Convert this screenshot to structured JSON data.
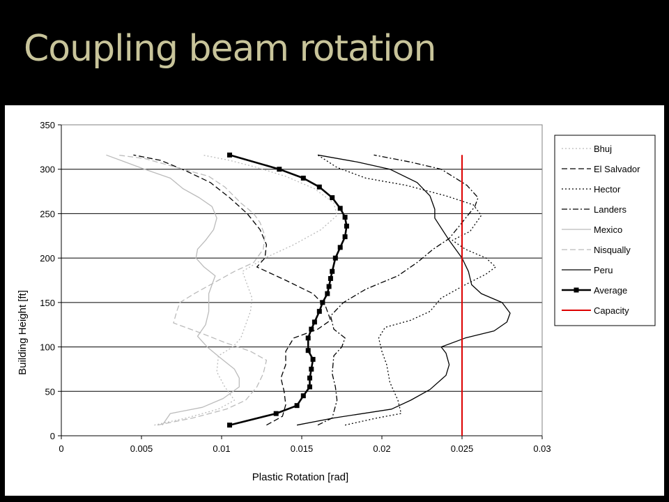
{
  "slide": {
    "title": "Coupling beam rotation"
  },
  "chart_data": {
    "type": "line",
    "title": "",
    "xlabel": "Plastic Rotation [rad]",
    "ylabel": "Building Height [ft]",
    "xlim": [
      0,
      0.03
    ],
    "ylim": [
      0,
      350
    ],
    "xticks": [
      "0",
      "0.005",
      "0.01",
      "0.015",
      "0.02",
      "0.025",
      "0.03"
    ],
    "yticks": [
      "0",
      "50",
      "100",
      "150",
      "200",
      "250",
      "300",
      "350"
    ],
    "grid": "horizontal",
    "legend_position": "right",
    "series": [
      {
        "name": "Bhuj",
        "color": "#bbbbbb",
        "style": "dotted",
        "points": [
          [
            0.0058,
            12
          ],
          [
            0.0078,
            20
          ],
          [
            0.0098,
            30
          ],
          [
            0.0108,
            40
          ],
          [
            0.0102,
            55
          ],
          [
            0.0097,
            72
          ],
          [
            0.0098,
            90
          ],
          [
            0.0107,
            100
          ],
          [
            0.0112,
            110
          ],
          [
            0.0115,
            125
          ],
          [
            0.0118,
            140
          ],
          [
            0.0119,
            155
          ],
          [
            0.0116,
            170
          ],
          [
            0.0113,
            185
          ],
          [
            0.0127,
            200
          ],
          [
            0.0145,
            215
          ],
          [
            0.0162,
            232
          ],
          [
            0.0172,
            248
          ],
          [
            0.017,
            262
          ],
          [
            0.0158,
            278
          ],
          [
            0.014,
            292
          ],
          [
            0.0122,
            302
          ],
          [
            0.0105,
            310
          ],
          [
            0.0088,
            316
          ]
        ]
      },
      {
        "name": "El Salvador",
        "color": "#000000",
        "style": "dashed",
        "points": [
          [
            0.0128,
            12
          ],
          [
            0.0138,
            22
          ],
          [
            0.014,
            35
          ],
          [
            0.0139,
            50
          ],
          [
            0.0137,
            65
          ],
          [
            0.014,
            80
          ],
          [
            0.014,
            95
          ],
          [
            0.0145,
            110
          ],
          [
            0.016,
            120
          ],
          [
            0.0168,
            130
          ],
          [
            0.0165,
            145
          ],
          [
            0.0157,
            160
          ],
          [
            0.014,
            175
          ],
          [
            0.0122,
            190
          ],
          [
            0.0127,
            200
          ],
          [
            0.0128,
            215
          ],
          [
            0.0124,
            232
          ],
          [
            0.0116,
            250
          ],
          [
            0.0105,
            268
          ],
          [
            0.0093,
            285
          ],
          [
            0.0078,
            298
          ],
          [
            0.0062,
            310
          ],
          [
            0.0045,
            316
          ]
        ]
      },
      {
        "name": "Hector",
        "color": "#000000",
        "style": "dotted",
        "points": [
          [
            0.0177,
            12
          ],
          [
            0.0197,
            20
          ],
          [
            0.0212,
            25
          ],
          [
            0.021,
            40
          ],
          [
            0.0205,
            60
          ],
          [
            0.0203,
            80
          ],
          [
            0.02,
            95
          ],
          [
            0.0198,
            110
          ],
          [
            0.0202,
            122
          ],
          [
            0.0218,
            130
          ],
          [
            0.023,
            140
          ],
          [
            0.0237,
            155
          ],
          [
            0.0252,
            170
          ],
          [
            0.0265,
            182
          ],
          [
            0.0271,
            190
          ],
          [
            0.0265,
            200
          ],
          [
            0.0252,
            210
          ],
          [
            0.0244,
            220
          ],
          [
            0.0255,
            230
          ],
          [
            0.0262,
            248
          ],
          [
            0.0257,
            260
          ],
          [
            0.024,
            270
          ],
          [
            0.0215,
            282
          ],
          [
            0.019,
            290
          ],
          [
            0.0172,
            302
          ],
          [
            0.016,
            316
          ]
        ]
      },
      {
        "name": "Landers",
        "color": "#000000",
        "style": "dashdot",
        "points": [
          [
            0.016,
            12
          ],
          [
            0.0169,
            20
          ],
          [
            0.0172,
            40
          ],
          [
            0.0171,
            55
          ],
          [
            0.0169,
            70
          ],
          [
            0.017,
            90
          ],
          [
            0.0175,
            100
          ],
          [
            0.0177,
            110
          ],
          [
            0.017,
            120
          ],
          [
            0.0168,
            135
          ],
          [
            0.0176,
            150
          ],
          [
            0.019,
            165
          ],
          [
            0.021,
            180
          ],
          [
            0.0222,
            195
          ],
          [
            0.0232,
            210
          ],
          [
            0.0242,
            222
          ],
          [
            0.025,
            240
          ],
          [
            0.0258,
            258
          ],
          [
            0.026,
            268
          ],
          [
            0.0253,
            282
          ],
          [
            0.0237,
            300
          ],
          [
            0.0218,
            308
          ],
          [
            0.0195,
            316
          ]
        ]
      },
      {
        "name": "Mexico",
        "color": "#bbbbbb",
        "style": "solid",
        "points": [
          [
            0.0063,
            12
          ],
          [
            0.0068,
            25
          ],
          [
            0.0088,
            32
          ],
          [
            0.0101,
            42
          ],
          [
            0.0111,
            55
          ],
          [
            0.0111,
            65
          ],
          [
            0.0108,
            75
          ],
          [
            0.0099,
            88
          ],
          [
            0.0091,
            100
          ],
          [
            0.0085,
            112
          ],
          [
            0.009,
            125
          ],
          [
            0.0092,
            140
          ],
          [
            0.0092,
            160
          ],
          [
            0.0096,
            180
          ],
          [
            0.0089,
            190
          ],
          [
            0.0084,
            200
          ],
          [
            0.0085,
            210
          ],
          [
            0.009,
            220
          ],
          [
            0.0095,
            232
          ],
          [
            0.0097,
            245
          ],
          [
            0.0094,
            258
          ],
          [
            0.0086,
            268
          ],
          [
            0.0076,
            278
          ],
          [
            0.0068,
            290
          ],
          [
            0.0052,
            300
          ],
          [
            0.004,
            308
          ],
          [
            0.0028,
            316
          ]
        ]
      },
      {
        "name": "Nisqually",
        "color": "#bbbbbb",
        "style": "dashed",
        "points": [
          [
            0.006,
            12
          ],
          [
            0.0082,
            20
          ],
          [
            0.0103,
            30
          ],
          [
            0.0115,
            40
          ],
          [
            0.0122,
            55
          ],
          [
            0.0126,
            70
          ],
          [
            0.0128,
            85
          ],
          [
            0.0118,
            95
          ],
          [
            0.0102,
            105
          ],
          [
            0.0088,
            115
          ],
          [
            0.007,
            127
          ],
          [
            0.0072,
            140
          ],
          [
            0.0074,
            150
          ],
          [
            0.0083,
            160
          ],
          [
            0.0098,
            175
          ],
          [
            0.0108,
            185
          ],
          [
            0.012,
            195
          ],
          [
            0.0126,
            210
          ],
          [
            0.0127,
            225
          ],
          [
            0.0124,
            240
          ],
          [
            0.012,
            250
          ],
          [
            0.0112,
            262
          ],
          [
            0.0102,
            280
          ],
          [
            0.0092,
            292
          ],
          [
            0.0072,
            302
          ],
          [
            0.0052,
            312
          ],
          [
            0.0035,
            316
          ]
        ]
      },
      {
        "name": "Peru",
        "color": "#000000",
        "style": "solid",
        "points": [
          [
            0.0147,
            12
          ],
          [
            0.017,
            20
          ],
          [
            0.0206,
            30
          ],
          [
            0.0218,
            40
          ],
          [
            0.023,
            52
          ],
          [
            0.024,
            68
          ],
          [
            0.0242,
            80
          ],
          [
            0.024,
            93
          ],
          [
            0.0237,
            100
          ],
          [
            0.0252,
            110
          ],
          [
            0.027,
            118
          ],
          [
            0.0278,
            128
          ],
          [
            0.028,
            138
          ],
          [
            0.0275,
            150
          ],
          [
            0.0262,
            160
          ],
          [
            0.0256,
            170
          ],
          [
            0.0254,
            185
          ],
          [
            0.025,
            200
          ],
          [
            0.0242,
            220
          ],
          [
            0.0233,
            245
          ],
          [
            0.0233,
            255
          ],
          [
            0.023,
            270
          ],
          [
            0.0222,
            285
          ],
          [
            0.0205,
            300
          ],
          [
            0.0185,
            308
          ],
          [
            0.016,
            316
          ]
        ]
      },
      {
        "name": "Average",
        "color": "#000000",
        "style": "bold-marker",
        "points": [
          [
            0.0105,
            12
          ],
          [
            0.0134,
            25
          ],
          [
            0.0147,
            34
          ],
          [
            0.0151,
            45
          ],
          [
            0.0155,
            55
          ],
          [
            0.0155,
            65
          ],
          [
            0.0156,
            75
          ],
          [
            0.0157,
            86
          ],
          [
            0.0154,
            96
          ],
          [
            0.0154,
            110
          ],
          [
            0.0156,
            120
          ],
          [
            0.0158,
            128
          ],
          [
            0.0161,
            140
          ],
          [
            0.0163,
            150
          ],
          [
            0.0166,
            160
          ],
          [
            0.0167,
            168
          ],
          [
            0.0168,
            177
          ],
          [
            0.0169,
            185
          ],
          [
            0.0171,
            200
          ],
          [
            0.0174,
            212
          ],
          [
            0.0177,
            224
          ],
          [
            0.0178,
            236
          ],
          [
            0.0177,
            246
          ],
          [
            0.0174,
            256
          ],
          [
            0.0169,
            268
          ],
          [
            0.0161,
            280
          ],
          [
            0.0151,
            290
          ],
          [
            0.0136,
            300
          ],
          [
            0.0105,
            316
          ]
        ]
      },
      {
        "name": "Capacity",
        "color": "#dd0000",
        "style": "solid-thick",
        "points": [
          [
            0.025,
            0
          ],
          [
            0.025,
            316
          ]
        ]
      }
    ]
  }
}
